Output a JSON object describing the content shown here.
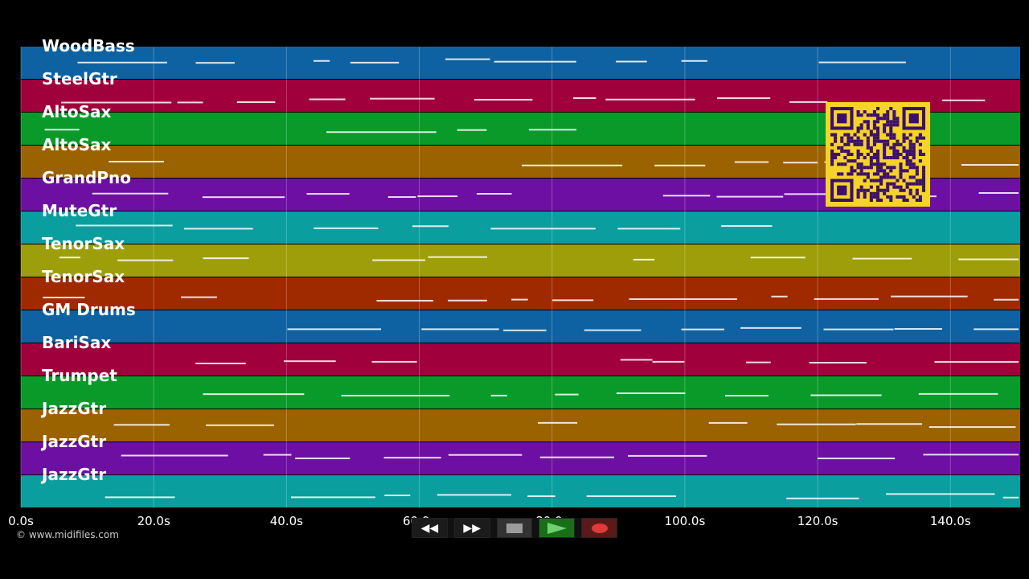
{
  "tracks": [
    {
      "label": "WoodBass",
      "color": "#0f62a1"
    },
    {
      "label": "SteelGtr",
      "color": "#a0003c"
    },
    {
      "label": "AltoSax",
      "color": "#0a9a2a"
    },
    {
      "label": "AltoSax",
      "color": "#9b6200"
    },
    {
      "label": "GrandPno",
      "color": "#6e0fa3"
    },
    {
      "label": "MuteGtr",
      "color": "#0a9e9e"
    },
    {
      "label": "TenorSax",
      "color": "#9e9e0a"
    },
    {
      "label": "TenorSax",
      "color": "#a02a00"
    },
    {
      "label": "GM Drums",
      "color": "#0f62a1"
    },
    {
      "label": "BariSax",
      "color": "#a0003c"
    },
    {
      "label": "Trumpet",
      "color": "#0a9a2a"
    },
    {
      "label": "JazzGtr",
      "color": "#9b6200"
    },
    {
      "label": "JazzGtr",
      "color": "#6e0fa3"
    },
    {
      "label": "JazzGtr",
      "color": "#0a9e9e"
    }
  ],
  "timeline": {
    "ticks": [
      "0.0s",
      "20.0s",
      "40.0s",
      "60.0s",
      "80.0s",
      "100.0s",
      "120.0s",
      "140.0s"
    ],
    "tick_seconds": [
      0,
      20,
      40,
      60,
      80,
      100,
      120,
      140
    ],
    "max_seconds": 150.5
  },
  "copyright": "© www.midifiles.com",
  "transport": {
    "rewind_icon": "rewind-icon",
    "ff_icon": "fast-forward-icon",
    "stop_icon": "stop-icon",
    "play_icon": "play-icon",
    "record_icon": "record-icon"
  },
  "qr": {
    "color": "#f5d327",
    "dark": "#3a0f6e"
  }
}
